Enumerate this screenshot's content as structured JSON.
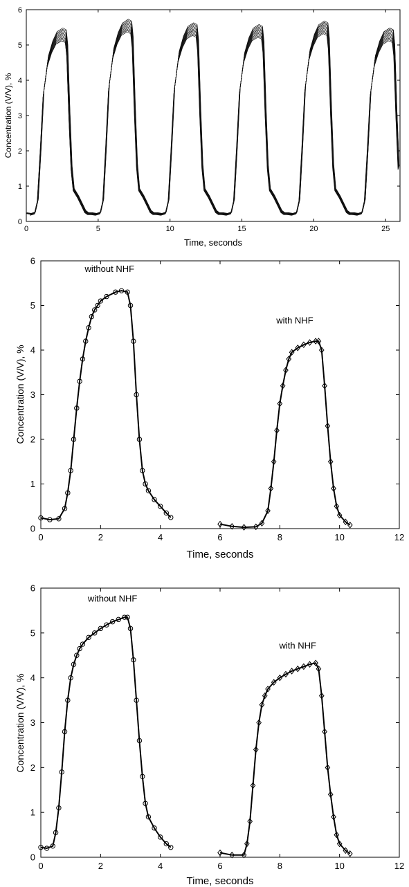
{
  "chart_data": [
    {
      "type": "line",
      "xlabel": "Time, seconds",
      "ylabel": "Concentration (V/V), %",
      "xlim": [
        0,
        26
      ],
      "ylim": [
        0,
        6
      ],
      "xticks": [
        0,
        5,
        10,
        15,
        20,
        25
      ],
      "yticks": [
        0,
        1,
        2,
        3,
        4,
        5,
        6
      ],
      "cycle_period": 4.55,
      "cycle_count": 6,
      "trace_count": 12,
      "series_template": {
        "t": [
          0,
          0.3,
          0.6,
          0.8,
          1.0,
          1.2,
          1.5,
          1.8,
          2.1,
          2.5,
          2.75,
          2.85,
          3.0,
          3.15,
          3.3,
          3.6,
          3.9,
          4.1,
          4.3,
          4.55
        ],
        "y": [
          0.22,
          0.2,
          0.24,
          0.6,
          2.0,
          3.6,
          4.5,
          4.9,
          5.15,
          5.25,
          5.2,
          4.8,
          3.0,
          1.5,
          0.9,
          0.7,
          0.45,
          0.28,
          0.22,
          0.22
        ]
      },
      "peak_levels": [
        5.3,
        5.55,
        5.45,
        5.4,
        5.5,
        5.3
      ],
      "grid": false,
      "legend": "none"
    },
    {
      "type": "line",
      "xlabel": "Time, seconds",
      "ylabel": "Concentration (V/V), %",
      "xlim": [
        0,
        12
      ],
      "ylim": [
        0,
        6
      ],
      "xticks": [
        0,
        2,
        4,
        6,
        8,
        10,
        12
      ],
      "yticks": [
        0,
        1,
        2,
        3,
        4,
        5,
        6
      ],
      "annotations": [
        {
          "text": "without NHF",
          "x": 2.3,
          "y": 5.75
        },
        {
          "text": "with NHF",
          "x": 8.5,
          "y": 4.6
        }
      ],
      "series": [
        {
          "marker": "circle",
          "x": [
            0.0,
            0.3,
            0.6,
            0.8,
            0.9,
            1.0,
            1.1,
            1.2,
            1.3,
            1.4,
            1.5,
            1.6,
            1.7,
            1.8,
            1.9,
            2.0,
            2.2,
            2.5,
            2.7,
            2.9,
            3.0,
            3.1,
            3.2,
            3.3,
            3.4,
            3.5,
            3.6,
            3.8,
            4.0,
            4.2,
            4.35
          ],
          "y": [
            0.24,
            0.2,
            0.22,
            0.45,
            0.8,
            1.3,
            2.0,
            2.7,
            3.3,
            3.8,
            4.2,
            4.5,
            4.75,
            4.9,
            5.0,
            5.1,
            5.2,
            5.3,
            5.33,
            5.3,
            5.0,
            4.2,
            3.0,
            2.0,
            1.3,
            1.0,
            0.85,
            0.65,
            0.5,
            0.35,
            0.25
          ]
        },
        {
          "marker": "diamond",
          "x": [
            6.0,
            6.4,
            6.8,
            7.2,
            7.4,
            7.6,
            7.7,
            7.8,
            7.9,
            8.0,
            8.1,
            8.2,
            8.3,
            8.4,
            8.6,
            8.8,
            9.0,
            9.2,
            9.3,
            9.4,
            9.5,
            9.6,
            9.7,
            9.8,
            9.9,
            10.0,
            10.2,
            10.35
          ],
          "y": [
            0.1,
            0.05,
            0.03,
            0.04,
            0.12,
            0.4,
            0.9,
            1.5,
            2.2,
            2.8,
            3.2,
            3.55,
            3.8,
            3.95,
            4.05,
            4.12,
            4.17,
            4.2,
            4.2,
            4.0,
            3.2,
            2.3,
            1.5,
            0.9,
            0.5,
            0.3,
            0.15,
            0.08
          ]
        }
      ],
      "grid": false,
      "legend": "none"
    },
    {
      "type": "line",
      "xlabel": "Time, seconds",
      "ylabel": "Concentration (V/V), %",
      "xlim": [
        0,
        12
      ],
      "ylim": [
        0,
        6
      ],
      "xticks": [
        0,
        2,
        4,
        6,
        8,
        10,
        12
      ],
      "yticks": [
        0,
        1,
        2,
        3,
        4,
        5,
        6
      ],
      "annotations": [
        {
          "text": "without NHF",
          "x": 2.4,
          "y": 5.7
        },
        {
          "text": "with NHF",
          "x": 8.6,
          "y": 4.65
        }
      ],
      "series": [
        {
          "marker": "circle",
          "x": [
            0.0,
            0.2,
            0.4,
            0.5,
            0.6,
            0.7,
            0.8,
            0.9,
            1.0,
            1.1,
            1.2,
            1.3,
            1.4,
            1.6,
            1.8,
            2.0,
            2.2,
            2.4,
            2.6,
            2.8,
            2.9,
            3.0,
            3.1,
            3.2,
            3.3,
            3.4,
            3.5,
            3.6,
            3.8,
            4.0,
            4.2,
            4.35
          ],
          "y": [
            0.22,
            0.2,
            0.25,
            0.55,
            1.1,
            1.9,
            2.8,
            3.5,
            4.0,
            4.3,
            4.5,
            4.65,
            4.75,
            4.9,
            5.0,
            5.1,
            5.18,
            5.25,
            5.3,
            5.35,
            5.35,
            5.1,
            4.4,
            3.5,
            2.6,
            1.8,
            1.2,
            0.9,
            0.65,
            0.45,
            0.3,
            0.22
          ]
        },
        {
          "marker": "diamond",
          "x": [
            6.0,
            6.4,
            6.8,
            6.9,
            7.0,
            7.1,
            7.2,
            7.3,
            7.4,
            7.5,
            7.6,
            7.8,
            8.0,
            8.2,
            8.4,
            8.6,
            8.8,
            9.0,
            9.2,
            9.3,
            9.4,
            9.5,
            9.6,
            9.7,
            9.8,
            9.9,
            10.0,
            10.2,
            10.35
          ],
          "y": [
            0.1,
            0.05,
            0.05,
            0.3,
            0.8,
            1.6,
            2.4,
            3.0,
            3.4,
            3.6,
            3.75,
            3.9,
            4.0,
            4.08,
            4.15,
            4.2,
            4.25,
            4.3,
            4.33,
            4.2,
            3.6,
            2.8,
            2.0,
            1.4,
            0.9,
            0.5,
            0.3,
            0.15,
            0.08
          ]
        }
      ],
      "grid": false,
      "legend": "none"
    }
  ]
}
